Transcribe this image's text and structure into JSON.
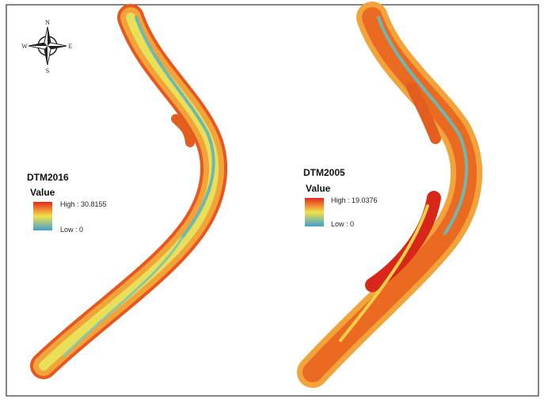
{
  "compass": {
    "north": "N",
    "south": "S",
    "east": "E",
    "west": "W"
  },
  "maps": [
    {
      "title": "DTM2016",
      "legend_title": "Value",
      "high_label": "High : 30.8155",
      "low_label": "Low : 0"
    },
    {
      "title": "DTM2005",
      "legend_title": "Value",
      "high_label": "High : 19.0376",
      "low_label": "Low : 0"
    }
  ]
}
